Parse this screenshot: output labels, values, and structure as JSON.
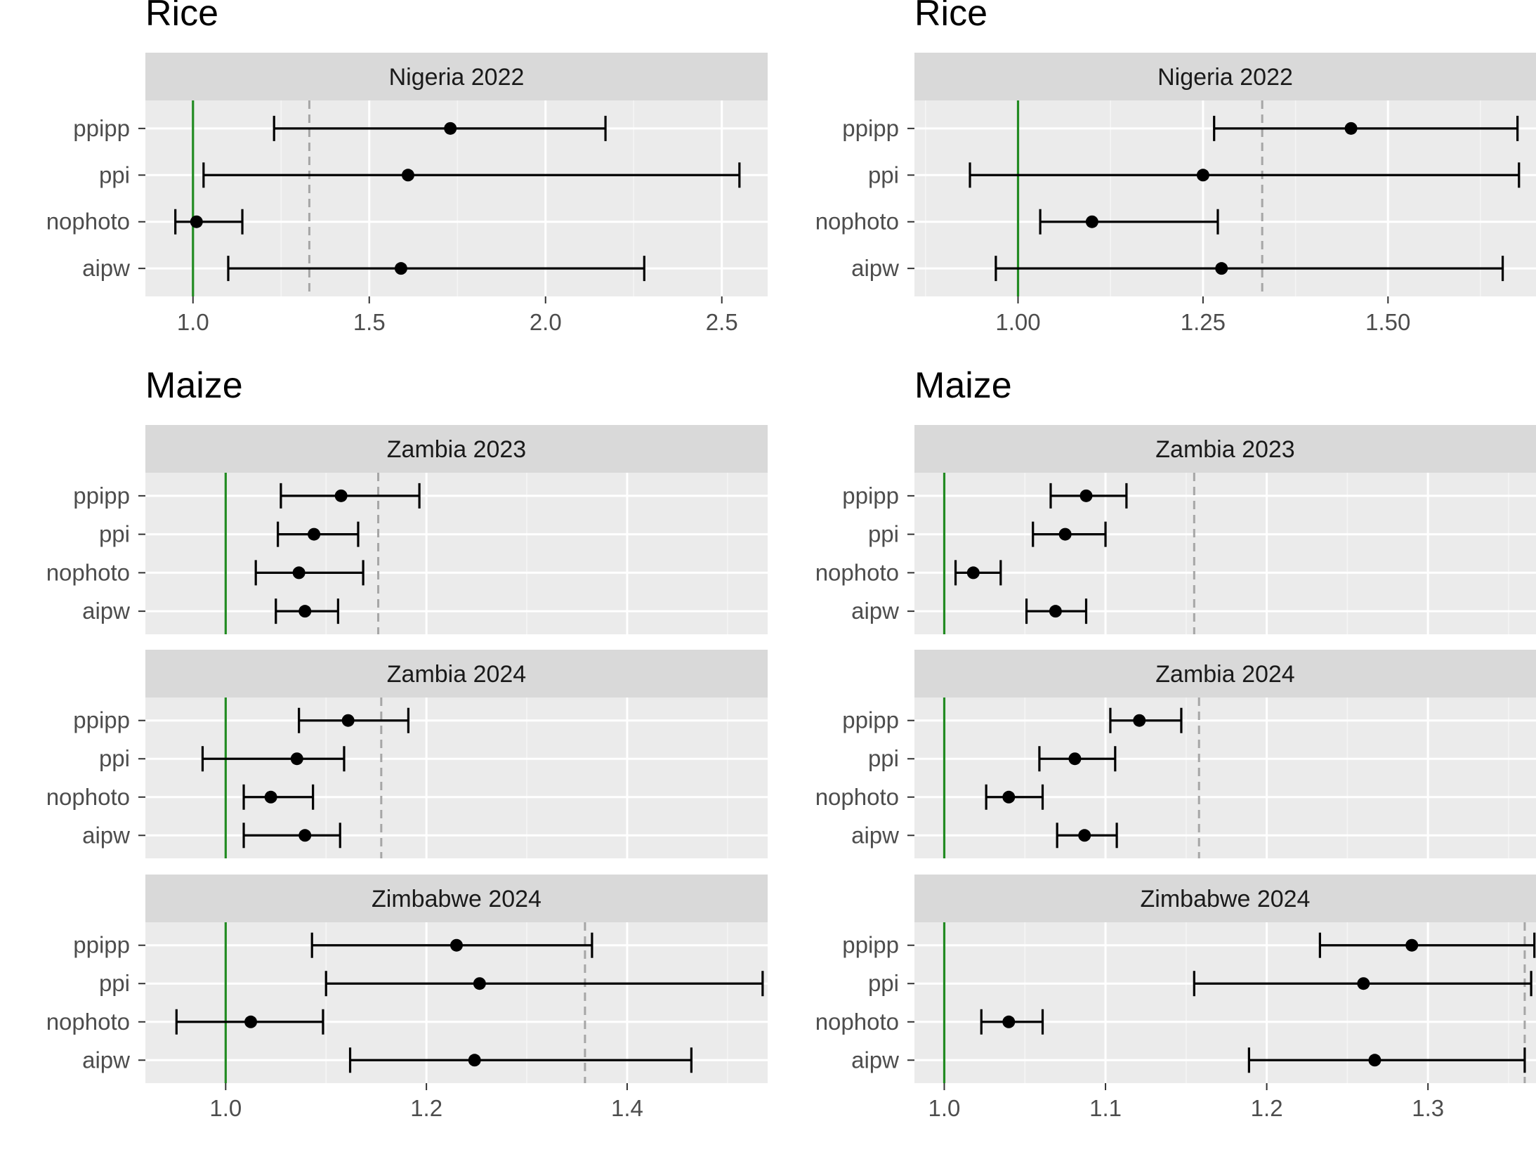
{
  "chart_data": [
    {
      "type": "errorbar",
      "title": "Rice",
      "position": "top-left",
      "xlim": [
        0.865,
        2.63
      ],
      "xticks": [
        1.0,
        1.5,
        2.0,
        2.5
      ],
      "xtick_labels": [
        "1.0",
        "1.5",
        "2.0",
        "2.5"
      ],
      "xminor": [
        1.25,
        1.75,
        2.25
      ],
      "facets": [
        {
          "label": "Nigeria 2022",
          "reference": 1.0,
          "dashed": 1.33,
          "categories": [
            "ppipp",
            "ppi",
            "nophoto",
            "aipw"
          ],
          "estimates": [
            1.73,
            1.61,
            1.01,
            1.59
          ],
          "lower": [
            1.23,
            1.03,
            0.95,
            1.1
          ],
          "upper": [
            2.17,
            2.55,
            1.14,
            2.28
          ]
        }
      ]
    },
    {
      "type": "errorbar",
      "title": "Rice",
      "position": "top-right",
      "xlim": [
        0.86,
        1.7
      ],
      "xticks": [
        1.0,
        1.25,
        1.5
      ],
      "xtick_labels": [
        "1.00",
        "1.25",
        "1.50"
      ],
      "xminor": [
        0.875,
        1.125,
        1.375,
        1.625
      ],
      "facets": [
        {
          "label": "Nigeria 2022",
          "reference": 1.0,
          "dashed": 1.33,
          "categories": [
            "ppipp",
            "ppi",
            "nophoto",
            "aipw"
          ],
          "estimates": [
            1.45,
            1.25,
            1.1,
            1.275
          ],
          "lower": [
            1.265,
            0.935,
            1.03,
            0.97
          ],
          "upper": [
            1.675,
            1.677,
            1.27,
            1.655
          ]
        }
      ]
    },
    {
      "type": "errorbar",
      "title": "Maize",
      "position": "bottom-left",
      "xlim": [
        0.92,
        1.54
      ],
      "xticks": [
        1.0,
        1.2,
        1.4
      ],
      "xtick_labels": [
        "1.0",
        "1.2",
        "1.4"
      ],
      "xminor": [
        1.1,
        1.3,
        1.5
      ],
      "facets": [
        {
          "label": "Zambia 2023",
          "reference": 1.0,
          "dashed": 1.152,
          "categories": [
            "ppipp",
            "ppi",
            "nophoto",
            "aipw"
          ],
          "estimates": [
            1.115,
            1.088,
            1.073,
            1.079
          ],
          "lower": [
            1.055,
            1.052,
            1.03,
            1.05
          ],
          "upper": [
            1.193,
            1.132,
            1.137,
            1.112
          ]
        },
        {
          "label": "Zambia 2024",
          "reference": 1.0,
          "dashed": 1.155,
          "categories": [
            "ppipp",
            "ppi",
            "nophoto",
            "aipw"
          ],
          "estimates": [
            1.122,
            1.071,
            1.045,
            1.079
          ],
          "lower": [
            1.073,
            0.977,
            1.018,
            1.018
          ],
          "upper": [
            1.182,
            1.118,
            1.087,
            1.114
          ]
        },
        {
          "label": "Zimbabwe 2024",
          "reference": 1.0,
          "dashed": 1.358,
          "categories": [
            "ppipp",
            "ppi",
            "nophoto",
            "aipw"
          ],
          "estimates": [
            1.23,
            1.253,
            1.025,
            1.248
          ],
          "lower": [
            1.086,
            1.1,
            0.951,
            1.124
          ],
          "upper": [
            1.365,
            1.535,
            1.097,
            1.464
          ]
        }
      ]
    },
    {
      "type": "errorbar",
      "title": "Maize",
      "position": "bottom-right",
      "xlim": [
        0.9815,
        1.367
      ],
      "xticks": [
        1.0,
        1.1,
        1.2,
        1.3
      ],
      "xtick_labels": [
        "1.0",
        "1.1",
        "1.2",
        "1.3"
      ],
      "xminor": [
        1.05,
        1.15,
        1.25,
        1.35
      ],
      "facets": [
        {
          "label": "Zambia 2023",
          "reference": 1.0,
          "dashed": 1.155,
          "categories": [
            "ppipp",
            "ppi",
            "nophoto",
            "aipw"
          ],
          "estimates": [
            1.088,
            1.075,
            1.018,
            1.069
          ],
          "lower": [
            1.066,
            1.055,
            1.007,
            1.051
          ],
          "upper": [
            1.113,
            1.1,
            1.035,
            1.088
          ]
        },
        {
          "label": "Zambia 2024",
          "reference": 1.0,
          "dashed": 1.158,
          "categories": [
            "ppipp",
            "ppi",
            "nophoto",
            "aipw"
          ],
          "estimates": [
            1.121,
            1.081,
            1.04,
            1.087
          ],
          "lower": [
            1.103,
            1.059,
            1.026,
            1.07
          ],
          "upper": [
            1.147,
            1.106,
            1.061,
            1.107
          ]
        },
        {
          "label": "Zimbabwe 2024",
          "reference": 1.0,
          "dashed": 1.36,
          "categories": [
            "ppipp",
            "ppi",
            "nophoto",
            "aipw"
          ],
          "estimates": [
            1.29,
            1.26,
            1.04,
            1.267
          ],
          "lower": [
            1.233,
            1.155,
            1.023,
            1.189
          ],
          "upper": [
            1.366,
            1.364,
            1.061,
            1.36
          ]
        }
      ]
    }
  ]
}
